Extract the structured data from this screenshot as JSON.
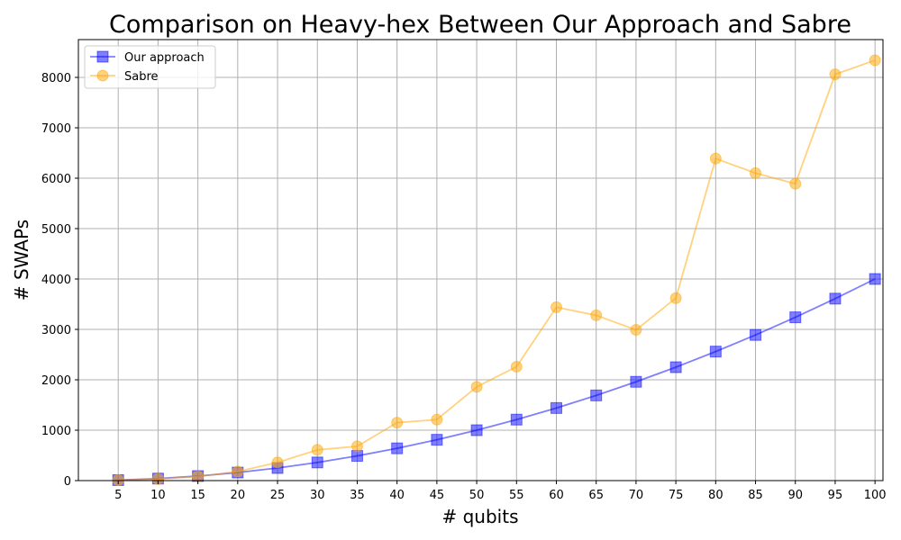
{
  "chart_data": {
    "type": "line",
    "title": "Comparison on Heavy-hex Between Our Approach and Sabre",
    "xlabel": "# qubits",
    "ylabel": "# SWAPs",
    "x": [
      5,
      10,
      15,
      20,
      25,
      30,
      35,
      40,
      45,
      50,
      55,
      60,
      65,
      70,
      75,
      80,
      85,
      90,
      95,
      100
    ],
    "xlim": [
      0,
      101
    ],
    "ylim": [
      0,
      8750
    ],
    "yticks": [
      0,
      1000,
      2000,
      3000,
      4000,
      5000,
      6000,
      7000,
      8000
    ],
    "grid": true,
    "legend_position": "top-left",
    "series": [
      {
        "name": "Our approach",
        "marker": "square",
        "color": "#0000ff",
        "values": [
          10,
          40,
          90,
          160,
          250,
          360,
          490,
          640,
          810,
          1000,
          1210,
          1440,
          1690,
          1960,
          2250,
          2560,
          2890,
          3240,
          3610,
          4000
        ]
      },
      {
        "name": "Sabre",
        "marker": "circle",
        "color": "#ffa500",
        "values": [
          10,
          30,
          80,
          180,
          360,
          610,
          680,
          1150,
          1210,
          1860,
          2260,
          3440,
          3280,
          2990,
          3620,
          6390,
          6100,
          5890,
          8060,
          8340
        ]
      }
    ]
  }
}
